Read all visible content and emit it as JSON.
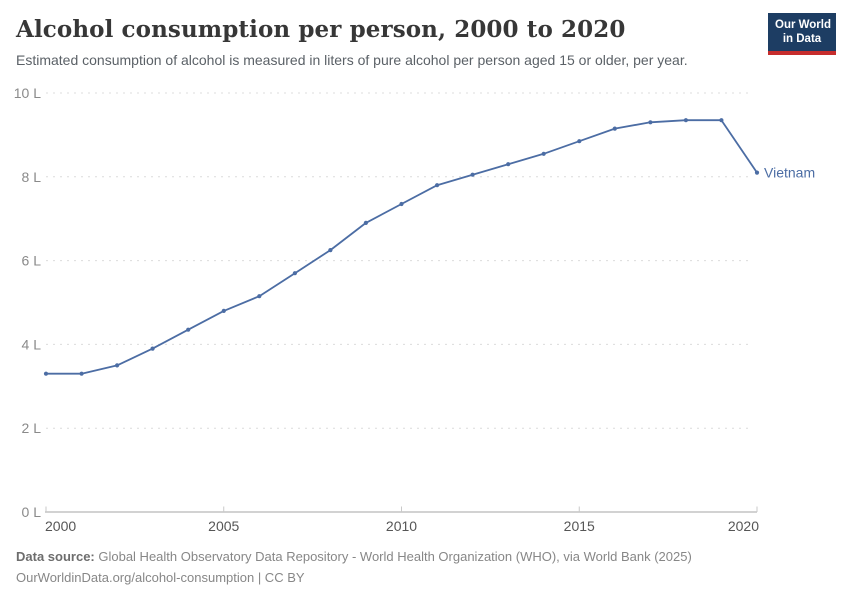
{
  "header": {
    "title": "Alcohol consumption per person, 2000 to 2020",
    "subtitle": "Estimated consumption of alcohol is measured in liters of pure alcohol per person aged 15 or older, per year.",
    "logo": {
      "line1": "Our World",
      "line2": "in Data"
    }
  },
  "chart_data": {
    "type": "line",
    "title": "Alcohol consumption per person, 2000 to 2020",
    "ylabel": "",
    "xlabel": "",
    "unit": "liters of pure alcohol per person",
    "x": [
      2000,
      2001,
      2002,
      2003,
      2004,
      2005,
      2006,
      2007,
      2008,
      2009,
      2010,
      2011,
      2012,
      2013,
      2014,
      2015,
      2016,
      2017,
      2018,
      2019,
      2020
    ],
    "series": [
      {
        "name": "Vietnam",
        "color": "#4c6da4",
        "values": [
          3.3,
          3.3,
          3.5,
          3.9,
          4.35,
          4.8,
          5.15,
          5.7,
          6.25,
          6.9,
          7.35,
          7.8,
          8.05,
          8.3,
          8.55,
          8.85,
          9.15,
          9.3,
          9.35,
          9.35,
          8.1
        ]
      }
    ],
    "ylim": [
      0,
      10
    ],
    "yticks": [
      0,
      2,
      4,
      6,
      8,
      10
    ],
    "ytick_labels": [
      "0 L",
      "2 L",
      "4 L",
      "6 L",
      "8 L",
      "10 L"
    ],
    "xticks": [
      2000,
      2005,
      2010,
      2015,
      2020
    ],
    "xtick_labels": [
      "2000",
      "2005",
      "2010",
      "2015",
      "2020"
    ],
    "grid": "horizontal-dashed",
    "legend_position": "end-of-line-label",
    "end_label": "Vietnam"
  },
  "footer": {
    "source_label": "Data source:",
    "source_text": " Global Health Observatory Data Repository - World Health Organization (WHO), via World Bank (2025)",
    "license_line": "OurWorldinData.org/alcohol-consumption | CC BY"
  },
  "colors": {
    "line": "#4c6da4",
    "end_label": "#4c6da4",
    "grid": "#dcdcdc",
    "axis": "#a6a6a6",
    "tick_mark": "#c9c9c9",
    "x_tick_label": "#565656",
    "y_tick_label": "#8a8a8a",
    "logo_bg": "#1d3d63",
    "logo_stripe": "#c62d2d"
  }
}
